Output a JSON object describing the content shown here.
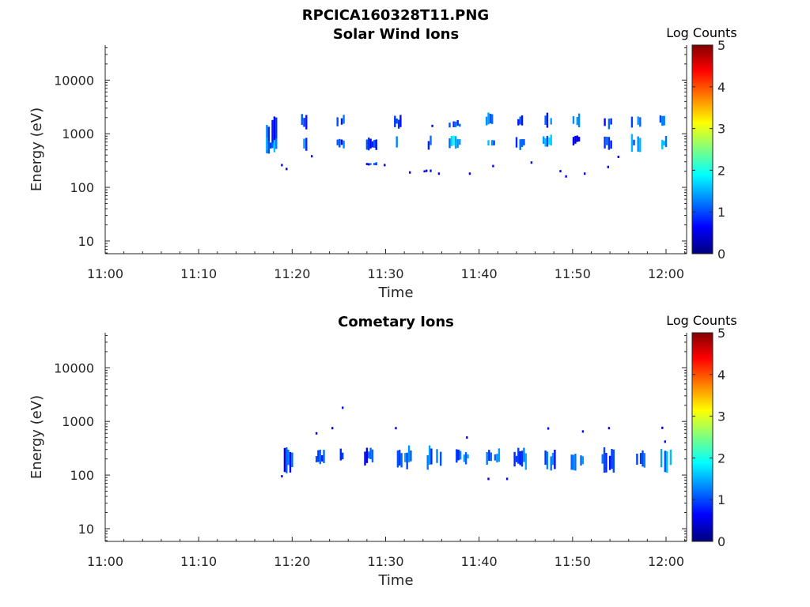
{
  "figure_title": "RPCICA160328T11.PNG",
  "colors": {
    "axis": "#262626",
    "colormap": [
      "#00007f",
      "#0000ff",
      "#007fff",
      "#00ffff",
      "#7fff7f",
      "#ffff00",
      "#ff7f00",
      "#ff0000",
      "#7f0000"
    ]
  },
  "chart_data": [
    {
      "type": "heatmap",
      "title": "Solar Wind Ions",
      "xlabel": "Time",
      "ylabel": "Energy (eV)",
      "x_tick_labels": [
        "11:00",
        "11:10",
        "11:20",
        "11:30",
        "11:40",
        "11:50",
        "12:00"
      ],
      "x_ticks_min": [
        0,
        10,
        20,
        30,
        40,
        50,
        60
      ],
      "xlim_min": [
        0,
        62.2
      ],
      "y_scale": "log",
      "y_tick_labels": [
        "10",
        "100",
        "1000",
        "10000"
      ],
      "y_ticks": [
        10,
        100,
        1000,
        10000
      ],
      "ylim": [
        5.8,
        45000
      ],
      "colorbar": {
        "label": "Log Counts",
        "ticks": [
          "0",
          "1",
          "2",
          "3",
          "4",
          "5"
        ],
        "range": [
          0,
          5
        ]
      },
      "clusters": [
        {
          "t": 17.8,
          "w": 1.2,
          "bands": [
            [
              340,
              2400,
              0.9
            ],
            [
              400,
              900,
              1.2
            ]
          ]
        },
        {
          "t": 21.3,
          "w": 0.7,
          "bands": [
            [
              1200,
              2400,
              1.0
            ],
            [
              480,
              900,
              1.0
            ]
          ]
        },
        {
          "t": 25.2,
          "w": 0.9,
          "bands": [
            [
              1300,
              2500,
              1.0
            ],
            [
              500,
              900,
              0.9
            ]
          ]
        },
        {
          "t": 28.5,
          "w": 1.2,
          "bands": [
            [
              480,
              900,
              0.9
            ],
            [
              250,
              300,
              0.8
            ]
          ]
        },
        {
          "t": 31.3,
          "w": 0.8,
          "bands": [
            [
              1200,
              2300,
              1.0
            ],
            [
              420,
              1000,
              1.3
            ]
          ]
        },
        {
          "t": 34.5,
          "w": 0.9,
          "bands": [
            [
              450,
              1000,
              1.0
            ],
            [
              180,
              220,
              0.7
            ]
          ]
        },
        {
          "t": 37.4,
          "w": 1.3,
          "bands": [
            [
              1200,
              1800,
              0.9
            ],
            [
              520,
              1000,
              1.5
            ]
          ]
        },
        {
          "t": 41.2,
          "w": 1.0,
          "bands": [
            [
              1200,
              2500,
              1.3
            ],
            [
              500,
              900,
              1.2
            ]
          ]
        },
        {
          "t": 44.3,
          "w": 1.2,
          "bands": [
            [
              1200,
              2400,
              1.0
            ],
            [
              480,
              1000,
              1.2
            ]
          ]
        },
        {
          "t": 47.3,
          "w": 1.0,
          "bands": [
            [
              1200,
              2500,
              1.0
            ],
            [
              500,
              1000,
              1.4
            ]
          ]
        },
        {
          "t": 50.5,
          "w": 1.0,
          "bands": [
            [
              1300,
              2400,
              1.0
            ],
            [
              600,
              1000,
              0.8
            ]
          ]
        },
        {
          "t": 53.8,
          "w": 0.9,
          "bands": [
            [
              1200,
              2300,
              1.0
            ],
            [
              500,
              900,
              1.1
            ]
          ]
        },
        {
          "t": 56.8,
          "w": 1.1,
          "bands": [
            [
              1200,
              2300,
              1.0
            ],
            [
              450,
              1000,
              1.2
            ]
          ]
        },
        {
          "t": 59.7,
          "w": 0.8,
          "bands": [
            [
              1300,
              2400,
              1.0
            ],
            [
              450,
              1000,
              1.2
            ]
          ]
        }
      ],
      "scattered": [
        [
          18.8,
          260,
          0.6
        ],
        [
          19.3,
          220,
          0.6
        ],
        [
          22.0,
          380,
          0.7
        ],
        [
          29.8,
          260,
          0.6
        ],
        [
          32.5,
          190,
          0.6
        ],
        [
          35.6,
          180,
          0.6
        ],
        [
          38.9,
          180,
          0.6
        ],
        [
          41.4,
          250,
          0.6
        ],
        [
          45.5,
          290,
          0.7
        ],
        [
          48.6,
          200,
          0.6
        ],
        [
          49.2,
          160,
          0.6
        ],
        [
          51.2,
          180,
          0.6
        ],
        [
          53.7,
          240,
          0.6
        ],
        [
          54.8,
          370,
          0.6
        ],
        [
          34.9,
          1400,
          0.6
        ]
      ]
    },
    {
      "type": "heatmap",
      "title": "Cometary Ions",
      "xlabel": "Time",
      "ylabel": "Energy (eV)",
      "x_tick_labels": [
        "11:00",
        "11:10",
        "11:20",
        "11:30",
        "11:40",
        "11:50",
        "12:00"
      ],
      "x_ticks_min": [
        0,
        10,
        20,
        30,
        40,
        50,
        60
      ],
      "xlim_min": [
        0,
        62.2
      ],
      "y_scale": "log",
      "y_tick_labels": [
        "10",
        "100",
        "1000",
        "10000"
      ],
      "y_ticks": [
        10,
        100,
        1000,
        10000
      ],
      "ylim": [
        5.8,
        45000
      ],
      "colorbar": {
        "label": "Log Counts",
        "ticks": [
          "0",
          "1",
          "2",
          "3",
          "4",
          "5"
        ],
        "range": [
          0,
          5
        ]
      },
      "clusters": [
        {
          "t": 19.5,
          "w": 1.2,
          "bands": [
            [
              100,
              330,
              0.9
            ]
          ]
        },
        {
          "t": 23.0,
          "w": 1.0,
          "bands": [
            [
              140,
              300,
              0.8
            ]
          ]
        },
        {
          "t": 25.2,
          "w": 1.0,
          "bands": [
            [
              170,
              320,
              0.9
            ]
          ]
        },
        {
          "t": 28.2,
          "w": 1.0,
          "bands": [
            [
              150,
              330,
              0.9
            ]
          ]
        },
        {
          "t": 32.0,
          "w": 1.6,
          "bands": [
            [
              120,
              380,
              1.3
            ]
          ]
        },
        {
          "t": 35.2,
          "w": 1.6,
          "bands": [
            [
              110,
              360,
              1.1
            ]
          ]
        },
        {
          "t": 38.3,
          "w": 1.6,
          "bands": [
            [
              150,
              330,
              1.1
            ]
          ]
        },
        {
          "t": 41.5,
          "w": 1.5,
          "bands": [
            [
              150,
              330,
              1.0
            ]
          ]
        },
        {
          "t": 44.4,
          "w": 1.4,
          "bands": [
            [
              120,
              330,
              1.1
            ]
          ]
        },
        {
          "t": 47.8,
          "w": 1.6,
          "bands": [
            [
              110,
              330,
              1.0
            ]
          ]
        },
        {
          "t": 50.5,
          "w": 1.4,
          "bands": [
            [
              110,
              330,
              1.2
            ]
          ]
        },
        {
          "t": 53.8,
          "w": 1.4,
          "bands": [
            [
              110,
              330,
              1.0
            ]
          ]
        },
        {
          "t": 57.3,
          "w": 1.0,
          "bands": [
            [
              130,
              320,
              0.9
            ]
          ]
        },
        {
          "t": 60.0,
          "w": 1.2,
          "bands": [
            [
              110,
              320,
              1.4
            ]
          ]
        }
      ],
      "scattered": [
        [
          22.5,
          600,
          0.6
        ],
        [
          24.2,
          750,
          0.6
        ],
        [
          25.3,
          1800,
          0.7
        ],
        [
          31.0,
          750,
          0.6
        ],
        [
          38.6,
          500,
          0.6
        ],
        [
          42.9,
          85,
          0.6
        ],
        [
          47.3,
          740,
          0.6
        ],
        [
          51.0,
          650,
          0.6
        ],
        [
          53.8,
          750,
          0.6
        ],
        [
          59.5,
          760,
          0.6
        ],
        [
          59.8,
          420,
          0.6
        ],
        [
          18.8,
          95,
          0.6
        ],
        [
          40.9,
          85,
          0.5
        ]
      ]
    }
  ]
}
